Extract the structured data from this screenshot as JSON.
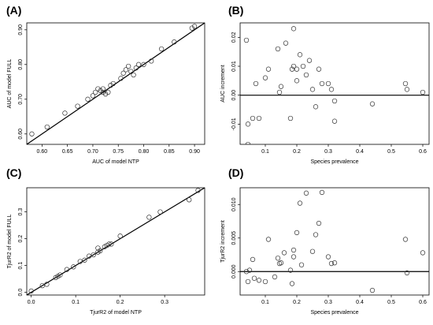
{
  "chart_data": [
    {
      "panel_label": "(A)",
      "type": "scatter",
      "xlabel": "AUC of model NTP",
      "ylabel": "AUC of model FULL",
      "xlim": [
        0.57,
        0.92
      ],
      "ylim": [
        0.57,
        0.92
      ],
      "xticks": [
        "0.60",
        "0.65",
        "0.70",
        "0.75",
        "0.80",
        "0.85",
        "0.90"
      ],
      "yticks": [
        "0.60",
        "0.70",
        "0.80",
        "0.90"
      ],
      "reference_line": "y = x",
      "points": [
        [
          0.58,
          0.6
        ],
        [
          0.61,
          0.62
        ],
        [
          0.645,
          0.66
        ],
        [
          0.67,
          0.68
        ],
        [
          0.69,
          0.7
        ],
        [
          0.7,
          0.71
        ],
        [
          0.705,
          0.72
        ],
        [
          0.71,
          0.73
        ],
        [
          0.715,
          0.725
        ],
        [
          0.72,
          0.72
        ],
        [
          0.72,
          0.73
        ],
        [
          0.725,
          0.715
        ],
        [
          0.73,
          0.72
        ],
        [
          0.735,
          0.74
        ],
        [
          0.74,
          0.745
        ],
        [
          0.755,
          0.76
        ],
        [
          0.76,
          0.775
        ],
        [
          0.765,
          0.785
        ],
        [
          0.77,
          0.795
        ],
        [
          0.775,
          0.78
        ],
        [
          0.78,
          0.77
        ],
        [
          0.785,
          0.79
        ],
        [
          0.79,
          0.8
        ],
        [
          0.8,
          0.8
        ],
        [
          0.815,
          0.81
        ],
        [
          0.835,
          0.845
        ],
        [
          0.86,
          0.865
        ],
        [
          0.895,
          0.905
        ],
        [
          0.9,
          0.91
        ]
      ]
    },
    {
      "panel_label": "(B)",
      "type": "scatter",
      "xlabel": "Species prevalence",
      "ylabel": "AUC increment",
      "xlim": [
        0.02,
        0.62
      ],
      "ylim": [
        -0.017,
        0.025
      ],
      "xticks": [
        "0.1",
        "0.2",
        "0.3",
        "0.4",
        "0.5",
        "0.6"
      ],
      "yticks": [
        "-0.01",
        "0.00",
        "0.01",
        "0.02"
      ],
      "reference_line": "y = 0",
      "points": [
        [
          0.04,
          0.019
        ],
        [
          0.045,
          -0.01
        ],
        [
          0.045,
          -0.017
        ],
        [
          0.06,
          -0.008
        ],
        [
          0.07,
          0.004
        ],
        [
          0.08,
          -0.008
        ],
        [
          0.1,
          0.006
        ],
        [
          0.11,
          0.009
        ],
        [
          0.14,
          0.016
        ],
        [
          0.145,
          0.001
        ],
        [
          0.15,
          0.003
        ],
        [
          0.165,
          0.018
        ],
        [
          0.18,
          -0.008
        ],
        [
          0.185,
          0.009
        ],
        [
          0.19,
          0.01
        ],
        [
          0.19,
          0.023
        ],
        [
          0.2,
          0.005
        ],
        [
          0.2,
          0.009
        ],
        [
          0.21,
          0.014
        ],
        [
          0.22,
          0.01
        ],
        [
          0.23,
          0.007
        ],
        [
          0.24,
          0.012
        ],
        [
          0.25,
          0.002
        ],
        [
          0.26,
          -0.004
        ],
        [
          0.27,
          0.009
        ],
        [
          0.28,
          0.004
        ],
        [
          0.3,
          0.004
        ],
        [
          0.31,
          0.002
        ],
        [
          0.32,
          -0.002
        ],
        [
          0.32,
          -0.009
        ],
        [
          0.44,
          -0.003
        ],
        [
          0.545,
          0.004
        ],
        [
          0.55,
          0.002
        ],
        [
          0.6,
          0.001
        ]
      ]
    },
    {
      "panel_label": "(C)",
      "type": "scatter",
      "xlabel": "TjurR2 of model NTP",
      "ylabel": "TjurR2 of model FULL",
      "xlim": [
        -0.01,
        0.39
      ],
      "ylim": [
        -0.01,
        0.39
      ],
      "xticks": [
        "0.0",
        "0.1",
        "0.2",
        "0.3"
      ],
      "yticks": [
        "0.0",
        "0.1",
        "0.2",
        "0.3"
      ],
      "reference_line": "y = x",
      "points": [
        [
          0.0,
          0.005
        ],
        [
          0.025,
          0.025
        ],
        [
          0.035,
          0.03
        ],
        [
          0.055,
          0.055
        ],
        [
          0.06,
          0.06
        ],
        [
          0.065,
          0.065
        ],
        [
          0.08,
          0.085
        ],
        [
          0.095,
          0.095
        ],
        [
          0.11,
          0.115
        ],
        [
          0.12,
          0.12
        ],
        [
          0.13,
          0.135
        ],
        [
          0.14,
          0.14
        ],
        [
          0.15,
          0.15
        ],
        [
          0.15,
          0.165
        ],
        [
          0.155,
          0.155
        ],
        [
          0.165,
          0.17
        ],
        [
          0.17,
          0.175
        ],
        [
          0.175,
          0.18
        ],
        [
          0.18,
          0.18
        ],
        [
          0.2,
          0.21
        ],
        [
          0.265,
          0.28
        ],
        [
          0.29,
          0.3
        ],
        [
          0.355,
          0.345
        ],
        [
          0.375,
          0.38
        ]
      ]
    },
    {
      "panel_label": "(D)",
      "type": "scatter",
      "xlabel": "Species prevalence",
      "ylabel": "TjurR2 increment",
      "xlim": [
        0.02,
        0.62
      ],
      "ylim": [
        -0.0035,
        0.0125
      ],
      "xticks": [
        "0.1",
        "0.2",
        "0.3",
        "0.4",
        "0.5",
        "0.6"
      ],
      "yticks": [
        "0.000",
        "0.005",
        "0.010"
      ],
      "reference_line": "y = 0",
      "points": [
        [
          0.04,
          0.0
        ],
        [
          0.045,
          -0.0015
        ],
        [
          0.05,
          0.0002
        ],
        [
          0.06,
          0.0018
        ],
        [
          0.065,
          -0.001
        ],
        [
          0.08,
          -0.0013
        ],
        [
          0.1,
          -0.0015
        ],
        [
          0.11,
          0.0048
        ],
        [
          0.13,
          -0.0008
        ],
        [
          0.14,
          0.002
        ],
        [
          0.145,
          0.0012
        ],
        [
          0.15,
          0.0013
        ],
        [
          0.16,
          0.0028
        ],
        [
          0.18,
          0.0002
        ],
        [
          0.185,
          -0.0018
        ],
        [
          0.19,
          0.0022
        ],
        [
          0.19,
          0.0032
        ],
        [
          0.2,
          0.0058
        ],
        [
          0.21,
          0.0102
        ],
        [
          0.215,
          0.001
        ],
        [
          0.23,
          0.0117
        ],
        [
          0.25,
          0.003
        ],
        [
          0.26,
          0.0055
        ],
        [
          0.27,
          0.0072
        ],
        [
          0.28,
          0.0118
        ],
        [
          0.3,
          0.0022
        ],
        [
          0.31,
          0.0012
        ],
        [
          0.32,
          0.0013
        ],
        [
          0.44,
          -0.0028
        ],
        [
          0.545,
          0.0048
        ],
        [
          0.55,
          -0.0002
        ],
        [
          0.6,
          0.0028
        ]
      ]
    }
  ]
}
